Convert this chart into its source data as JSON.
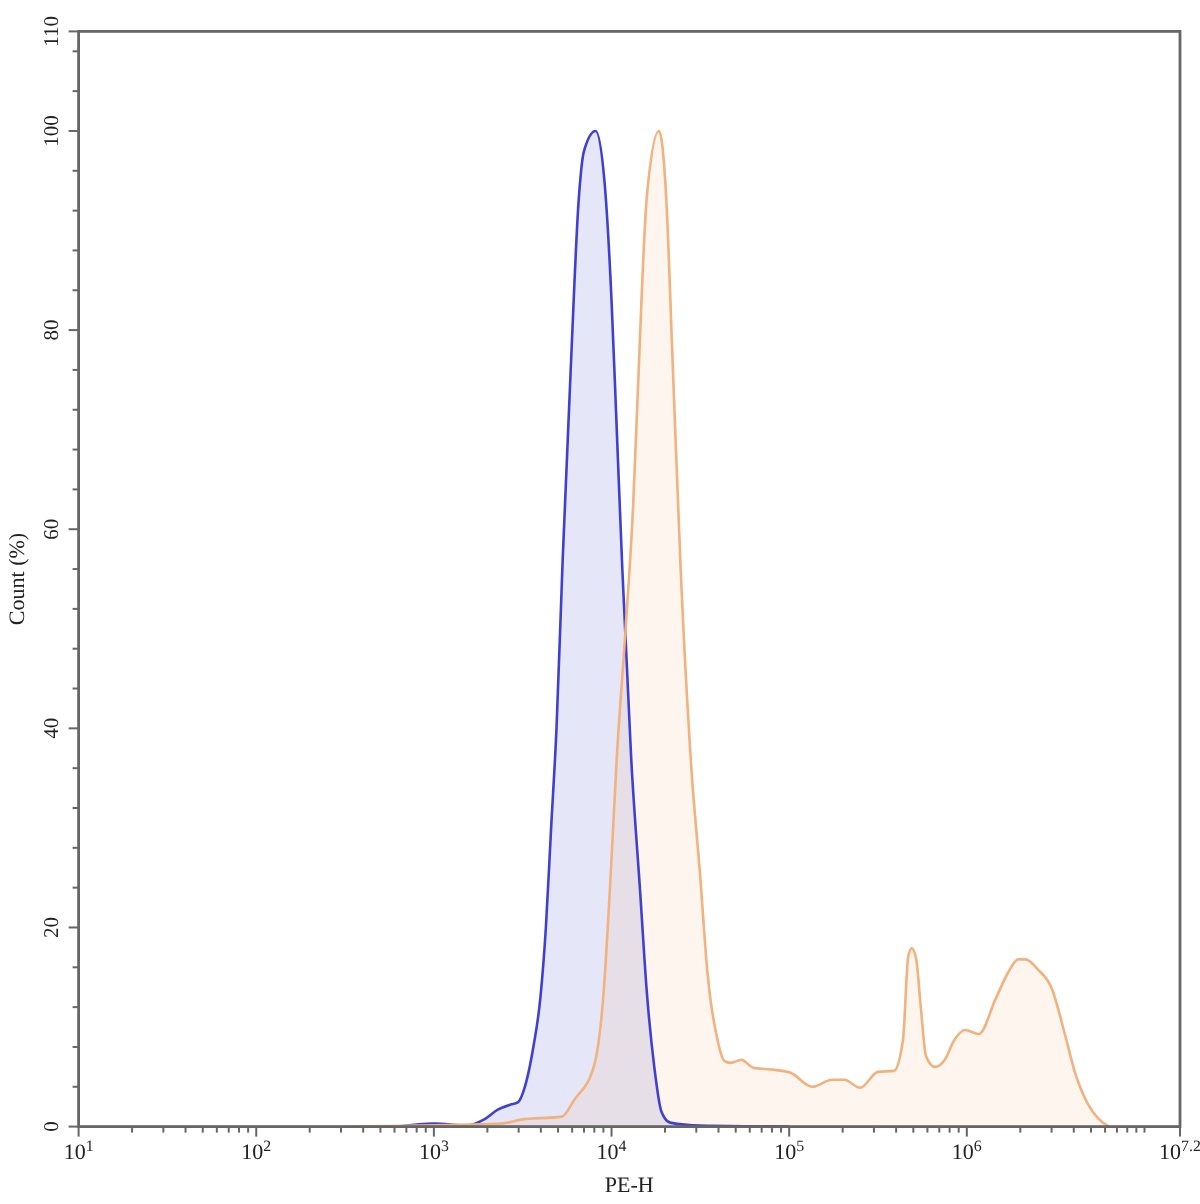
{
  "chart_data": {
    "type": "area",
    "xlabel": "PE-H",
    "ylabel": "Count (%)",
    "log": "x",
    "xlim": [
      10,
      15848931.92
    ],
    "ylim": [
      0,
      110
    ],
    "xticks": [
      {
        "value": 10,
        "label": "10$^{1}$"
      },
      {
        "value": 20,
        "label": null
      },
      {
        "value": 30,
        "label": null
      },
      {
        "value": 40,
        "label": null
      },
      {
        "value": 50,
        "label": null
      },
      {
        "value": 60,
        "label": null
      },
      {
        "value": 70,
        "label": null
      },
      {
        "value": 80,
        "label": null
      },
      {
        "value": 90,
        "label": null
      },
      {
        "value": 100,
        "label": "10$^{2}$"
      },
      {
        "value": 200,
        "label": null
      },
      {
        "value": 300,
        "label": null
      },
      {
        "value": 400,
        "label": null
      },
      {
        "value": 500,
        "label": null
      },
      {
        "value": 600,
        "label": null
      },
      {
        "value": 700,
        "label": null
      },
      {
        "value": 800,
        "label": null
      },
      {
        "value": 900,
        "label": null
      },
      {
        "value": 1000,
        "label": "10$^{3}$"
      },
      {
        "value": 2000,
        "label": null
      },
      {
        "value": 3000,
        "label": null
      },
      {
        "value": 4000,
        "label": null
      },
      {
        "value": 5000,
        "label": null
      },
      {
        "value": 6000,
        "label": null
      },
      {
        "value": 7000,
        "label": null
      },
      {
        "value": 8000,
        "label": null
      },
      {
        "value": 9000,
        "label": null
      },
      {
        "value": 10000,
        "label": "10$^{4}$"
      },
      {
        "value": 20000,
        "label": null
      },
      {
        "value": 30000,
        "label": null
      },
      {
        "value": 40000,
        "label": null
      },
      {
        "value": 50000,
        "label": null
      },
      {
        "value": 60000,
        "label": null
      },
      {
        "value": 70000,
        "label": null
      },
      {
        "value": 80000,
        "label": null
      },
      {
        "value": 90000,
        "label": null
      },
      {
        "value": 100000,
        "label": "10$^{5}$"
      },
      {
        "value": 200000,
        "label": null
      },
      {
        "value": 300000,
        "label": null
      },
      {
        "value": 400000,
        "label": null
      },
      {
        "value": 500000,
        "label": null
      },
      {
        "value": 600000,
        "label": null
      },
      {
        "value": 700000,
        "label": null
      },
      {
        "value": 800000,
        "label": null
      },
      {
        "value": 900000,
        "label": null
      },
      {
        "value": 1000000,
        "label": "10$^{6}$"
      },
      {
        "value": 2000000,
        "label": null
      },
      {
        "value": 3000000,
        "label": null
      },
      {
        "value": 4000000,
        "label": null
      },
      {
        "value": 5000000,
        "label": null
      },
      {
        "value": 6000000,
        "label": null
      },
      {
        "value": 7000000,
        "label": null
      },
      {
        "value": 8000000,
        "label": null
      },
      {
        "value": 9000000,
        "label": null
      },
      {
        "value": 10000000,
        "label": null
      },
      {
        "value": 15848931.92,
        "label": "10$^{7.2}$"
      }
    ],
    "yticks": [
      0,
      {
        "value": 4,
        "label": null
      },
      {
        "value": 8,
        "label": null
      },
      {
        "value": 12,
        "label": null
      },
      {
        "value": 16,
        "label": null
      },
      20,
      {
        "value": 24,
        "label": null
      },
      {
        "value": 28,
        "label": null
      },
      {
        "value": 32,
        "label": null
      },
      {
        "value": 36,
        "label": null
      },
      40,
      {
        "value": 44,
        "label": null
      },
      {
        "value": 48,
        "label": null
      },
      {
        "value": 52,
        "label": null
      },
      {
        "value": 56,
        "label": null
      },
      60,
      {
        "value": 64,
        "label": null
      },
      {
        "value": 68,
        "label": null
      },
      {
        "value": 72,
        "label": null
      },
      {
        "value": 76,
        "label": null
      },
      80,
      {
        "value": 84,
        "label": null
      },
      {
        "value": 88,
        "label": null
      },
      {
        "value": 92,
        "label": null
      },
      {
        "value": 96,
        "label": null
      },
      100,
      {
        "value": 104,
        "label": null
      },
      {
        "value": 108,
        "label": null
      },
      110
    ],
    "series": [
      {
        "color": "#4040d0",
        "x": [
          631,
          1000,
          1550,
          1910,
          2290,
          2690,
          2950,
          3310,
          3630,
          3980,
          4270,
          4570,
          4900,
          5310,
          5890,
          6530,
          7000,
          8130,
          9120,
          10000,
          10700,
          11500,
          12900,
          14500,
          15800,
          17400,
          19100,
          21400,
          31600,
          100000
        ],
        "values": [
          0,
          0.3,
          0.1,
          0.7,
          1.7,
          2.2,
          2.4,
          4.5,
          8,
          13,
          20,
          30,
          40,
          57,
          76,
          93,
          98,
          100,
          95,
          83,
          70,
          56,
          37,
          23.5,
          13.5,
          6,
          1.5,
          0.4,
          0.1,
          0
        ]
      },
      {
        "color": "#f0b27e",
        "x": [
          316,
          2400,
          3090,
          5250,
          6170,
          7940,
          9020,
          9770,
          10700,
          12000,
          13200,
          14000,
          15800,
          18500,
          20300,
          22100,
          24500,
          27900,
          31600,
          34700,
          39500,
          43200,
          46800,
          53700,
          63100,
          83200,
          102000,
          135000,
          174000,
          204000,
          251000,
          316000,
          389000,
          437000,
          468000,
          490000,
          519000,
          550000,
          589000,
          661000,
          750000,
          851000,
          977000,
          1170000,
          1450000,
          1700000,
          1950000,
          2140000,
          2510000,
          3020000,
          3550000,
          4070000,
          4790000,
          5500000,
          6310000
        ],
        "values": [
          0,
          0.3,
          0.7,
          1.0,
          2.7,
          6,
          13.4,
          23.5,
          37,
          50,
          62,
          73,
          93.4,
          100,
          93.4,
          76.6,
          56,
          37,
          25,
          15.4,
          8.7,
          6.6,
          6.4,
          6.7,
          5.9,
          5.7,
          5.4,
          4.0,
          4.7,
          4.7,
          3.9,
          5.5,
          5.6,
          8.7,
          17.1,
          17.9,
          16.8,
          12.1,
          7.1,
          6.0,
          6.7,
          8.7,
          9.7,
          9.3,
          12.8,
          15.4,
          16.8,
          16.8,
          15.8,
          13.8,
          9.4,
          5.4,
          2.3,
          0.8,
          0
        ]
      }
    ]
  }
}
